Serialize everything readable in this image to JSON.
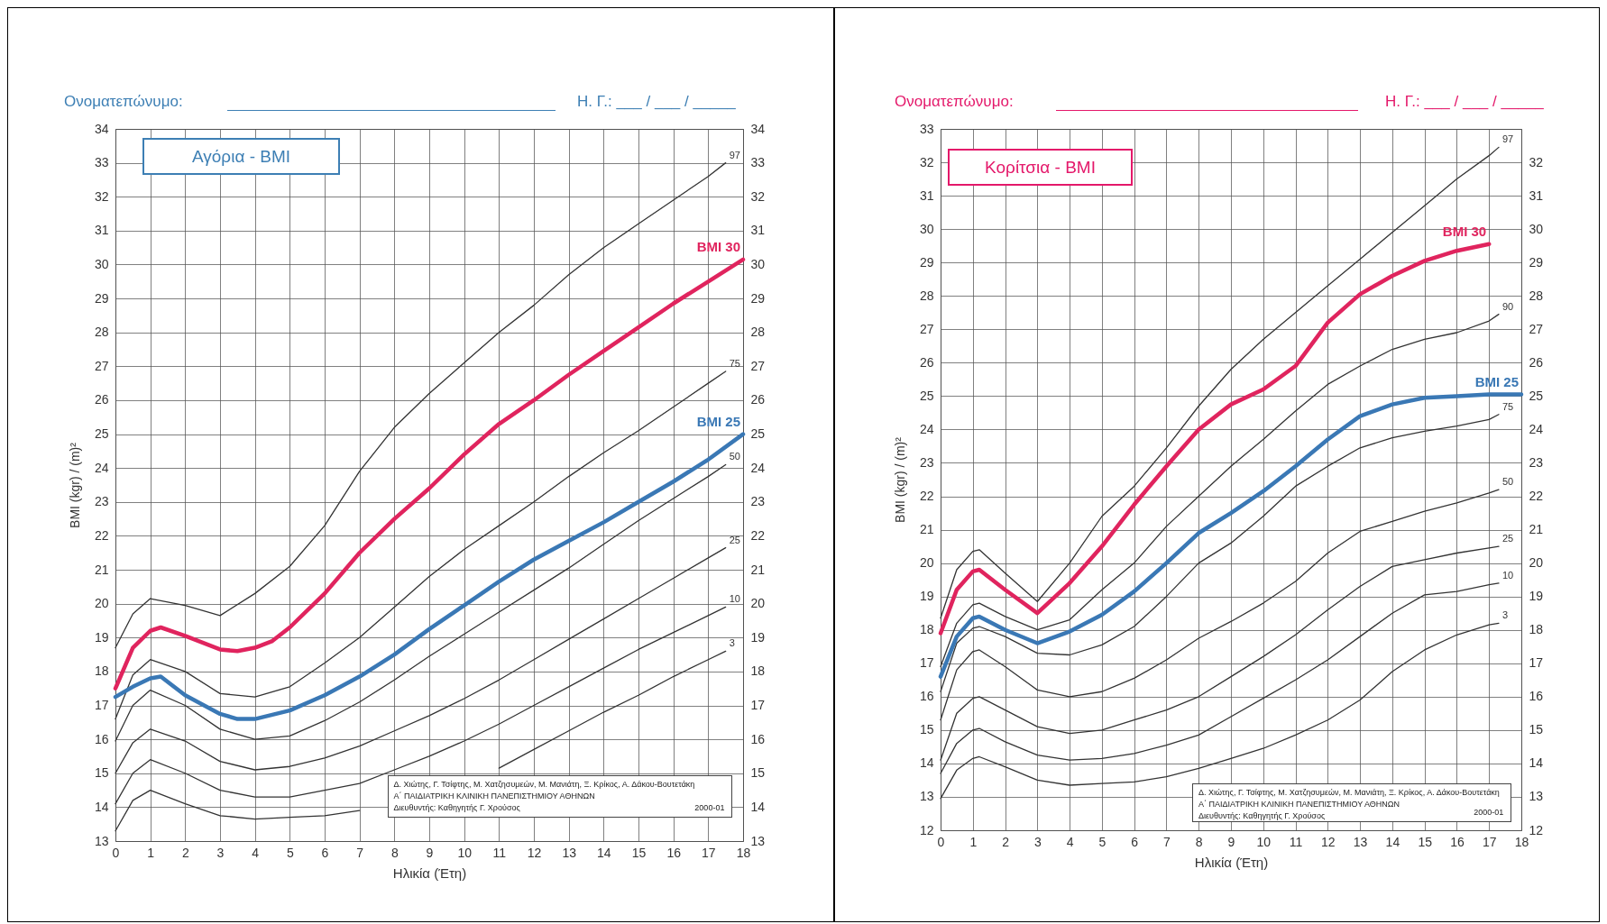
{
  "chart_data": [
    {
      "type": "line",
      "title": "Αγόρια - BMI",
      "xlabel": "Ηλικία (Έτη)",
      "ylabel": "BMI (kgr) / (m)²",
      "annotations": [
        "Ονοματεπώνυμο:",
        "Η. Γ.: ___ / ___ / _____",
        "Δ. Χιώτης, Γ. Τσίφτης, Μ. Χατζησυμεών, Μ. Μανιάτη, Ξ. Κρίκος, Α. Δάκου-Βουτετάκη",
        "Α΄ ΠΑΙΔΙΑΤΡΙΚΗ ΚΛΙΝΙΚΗ ΠΑΝΕΠΙΣΤΗΜΙΟΥ ΑΘΗΝΩΝ",
        "Διευθυντής: Καθηγητής Γ. Χρούσος",
        "2000-01"
      ],
      "xlim": [
        0,
        18
      ],
      "xticks": [
        0,
        1,
        2,
        3,
        4,
        5,
        6,
        7,
        8,
        9,
        10,
        11,
        12,
        13,
        14,
        15,
        16,
        17,
        18
      ],
      "ylim": [
        13,
        34
      ],
      "yticks": [
        13,
        14,
        15,
        16,
        17,
        18,
        19,
        20,
        21,
        22,
        23,
        24,
        25,
        26,
        27,
        28,
        29,
        30,
        31,
        32,
        33,
        34
      ],
      "y2lim": [
        13,
        34
      ],
      "y2ticks": [
        13,
        14,
        15,
        16,
        17,
        18,
        19,
        20,
        21,
        22,
        23,
        24,
        25,
        26,
        27,
        28,
        29,
        30,
        31,
        32,
        33,
        34
      ],
      "grid": true,
      "series": [
        {
          "name": "97",
          "color": "#333333",
          "x": [
            0,
            0.5,
            1,
            2,
            3,
            4,
            5,
            6,
            7,
            8,
            9,
            10,
            11,
            12,
            13,
            14,
            15,
            16,
            17,
            17.5
          ],
          "values": [
            18.7,
            19.7,
            20.15,
            19.95,
            19.65,
            20.3,
            21.1,
            22.3,
            23.9,
            25.2,
            26.2,
            27.1,
            28.0,
            28.8,
            29.7,
            30.5,
            31.2,
            31.9,
            32.6,
            33.0
          ]
        },
        {
          "name": "75",
          "color": "#333333",
          "x": [
            0,
            0.5,
            1,
            2,
            3,
            4,
            5,
            6,
            7,
            8,
            9,
            10,
            11,
            12,
            13,
            14,
            15,
            16,
            17,
            17.5
          ],
          "values": [
            16.6,
            17.9,
            18.35,
            18.0,
            17.35,
            17.25,
            17.55,
            18.25,
            19.0,
            19.9,
            20.8,
            21.6,
            22.3,
            23.0,
            23.75,
            24.45,
            25.1,
            25.8,
            26.5,
            26.85
          ]
        },
        {
          "name": "50",
          "color": "#333333",
          "x": [
            0,
            0.5,
            1,
            2,
            3,
            4,
            5,
            6,
            7,
            8,
            9,
            10,
            11,
            12,
            13,
            14,
            15,
            16,
            17,
            17.5
          ],
          "values": [
            15.95,
            17.0,
            17.45,
            17.0,
            16.3,
            16.0,
            16.1,
            16.55,
            17.1,
            17.75,
            18.45,
            19.1,
            19.75,
            20.4,
            21.05,
            21.75,
            22.45,
            23.1,
            23.75,
            24.1
          ]
        },
        {
          "name": "25",
          "color": "#333333",
          "x": [
            0,
            0.5,
            1,
            2,
            3,
            4,
            5,
            6,
            7,
            8,
            9,
            10,
            11,
            12,
            13,
            14,
            15,
            16,
            17,
            17.5
          ],
          "values": [
            15.0,
            15.9,
            16.3,
            15.95,
            15.35,
            15.1,
            15.2,
            15.45,
            15.8,
            16.25,
            16.7,
            17.2,
            17.75,
            18.35,
            18.95,
            19.55,
            20.15,
            20.75,
            21.35,
            21.65
          ]
        },
        {
          "name": "10",
          "color": "#333333",
          "x": [
            0,
            0.5,
            1,
            2,
            3,
            4,
            5,
            6,
            7,
            8,
            9,
            10,
            11,
            12,
            13,
            14,
            15,
            16,
            17,
            17.5
          ],
          "values": [
            14.1,
            15.0,
            15.4,
            15.0,
            14.5,
            14.3,
            14.3,
            14.5,
            14.7,
            15.1,
            15.5,
            15.95,
            16.45,
            17.0,
            17.55,
            18.1,
            18.65,
            19.15,
            19.65,
            19.9
          ]
        },
        {
          "name": "3",
          "color": "#333333",
          "x": [
            0,
            0.5,
            1,
            2,
            3,
            4,
            5,
            6,
            7,
            8,
            9,
            10,
            11,
            12,
            13,
            14,
            15,
            16,
            17,
            17.5
          ],
          "values": [
            13.3,
            14.2,
            14.5,
            14.1,
            13.75,
            13.65,
            13.7,
            13.75,
            13.9,
            null,
            null,
            null,
            15.15,
            15.7,
            16.25,
            16.8,
            17.3,
            17.85,
            18.35,
            18.6
          ]
        },
        {
          "name": "BMI 30",
          "color": "#e0245e",
          "x": [
            0,
            0.5,
            1,
            1.3,
            2,
            3,
            3.5,
            4,
            4.5,
            5,
            6,
            7,
            8,
            9,
            10,
            11,
            12,
            13,
            14,
            15,
            16,
            17,
            18
          ],
          "values": [
            17.5,
            18.7,
            19.2,
            19.3,
            19.05,
            18.65,
            18.6,
            18.7,
            18.9,
            19.3,
            20.3,
            21.5,
            22.5,
            23.4,
            24.4,
            25.3,
            26.0,
            26.75,
            27.45,
            28.15,
            28.85,
            29.5,
            30.15
          ]
        },
        {
          "name": "BMI 25",
          "color": "#3a78b5",
          "x": [
            0,
            0.5,
            1,
            1.3,
            2,
            3,
            3.5,
            4,
            5,
            6,
            7,
            8,
            9,
            10,
            11,
            12,
            13,
            14,
            15,
            16,
            17,
            18
          ],
          "values": [
            17.25,
            17.55,
            17.8,
            17.85,
            17.3,
            16.75,
            16.6,
            16.6,
            16.85,
            17.3,
            17.85,
            18.5,
            19.25,
            19.95,
            20.65,
            21.3,
            21.85,
            22.4,
            23.0,
            23.6,
            24.25,
            25.0
          ]
        }
      ]
    },
    {
      "type": "line",
      "title": "Κορίτσια - BMI",
      "xlabel": "Ηλικία (Έτη)",
      "ylabel": "BMI (kgr) / (m)²",
      "annotations": [
        "Ονοματεπώνυμο:",
        "Η. Γ.: ___ / ___ / _____",
        "Δ. Χιώτης, Γ. Τσίφτης, Μ. Χατζησυμεών, Μ. Μανιάτη, Ξ. Κρίκος, Α. Δάκου-Βουτετάκη",
        "Α΄ ΠΑΙΔΙΑΤΡΙΚΗ ΚΛΙΝΙΚΗ ΠΑΝΕΠΙΣΤΗΜΙΟΥ ΑΘΗΝΩΝ",
        "Διευθυντής: Καθηγητής Γ. Χρούσος",
        "2000-01"
      ],
      "xlim": [
        0,
        18
      ],
      "xticks": [
        0,
        1,
        2,
        3,
        4,
        5,
        6,
        7,
        8,
        9,
        10,
        11,
        12,
        13,
        14,
        15,
        16,
        17,
        18
      ],
      "ylim": [
        12,
        33
      ],
      "yticks": [
        12,
        13,
        14,
        15,
        16,
        17,
        18,
        19,
        20,
        21,
        22,
        23,
        24,
        25,
        26,
        27,
        28,
        29,
        30,
        31,
        32,
        33
      ],
      "y2lim": [
        12,
        33
      ],
      "y2ticks": [
        12,
        13,
        14,
        15,
        16,
        17,
        18,
        19,
        20,
        21,
        22,
        23,
        24,
        25,
        26,
        27,
        28,
        29,
        30,
        31,
        32
      ],
      "grid": true,
      "series": [
        {
          "name": "97",
          "color": "#333333",
          "x": [
            0,
            0.5,
            1,
            1.2,
            2,
            3,
            4,
            5,
            6,
            7,
            8,
            9,
            10,
            11,
            12,
            13,
            14,
            15,
            16,
            17,
            17.3
          ],
          "values": [
            18.35,
            19.8,
            20.35,
            20.4,
            19.7,
            18.85,
            20.0,
            21.4,
            22.3,
            23.45,
            24.7,
            25.8,
            26.7,
            27.5,
            28.3,
            29.1,
            29.9,
            30.7,
            31.5,
            32.2,
            32.45
          ]
        },
        {
          "name": "90",
          "color": "#333333",
          "x": [
            0,
            0.5,
            1,
            1.2,
            2,
            3,
            4,
            5,
            6,
            7,
            8,
            9,
            10,
            11,
            12,
            13,
            14,
            15,
            16,
            17,
            17.3
          ],
          "values": [
            16.9,
            18.2,
            18.75,
            18.8,
            18.4,
            18.0,
            18.3,
            19.2,
            20.0,
            21.1,
            22.0,
            22.9,
            23.7,
            24.55,
            25.35,
            25.9,
            26.4,
            26.7,
            26.9,
            27.25,
            27.45
          ]
        },
        {
          "name": "75",
          "color": "#333333",
          "x": [
            0,
            0.5,
            1,
            1.2,
            2,
            3,
            4,
            5,
            6,
            7,
            8,
            9,
            10,
            11,
            12,
            13,
            14,
            15,
            16,
            17,
            17.3
          ],
          "values": [
            16.15,
            17.6,
            18.05,
            18.1,
            17.8,
            17.3,
            17.25,
            17.55,
            18.1,
            19.0,
            20.0,
            20.6,
            21.4,
            22.3,
            22.9,
            23.45,
            23.75,
            23.95,
            24.1,
            24.3,
            24.45
          ]
        },
        {
          "name": "50",
          "color": "#333333",
          "x": [
            0,
            0.5,
            1,
            1.2,
            2,
            3,
            4,
            5,
            6,
            7,
            8,
            9,
            10,
            11,
            12,
            13,
            14,
            15,
            16,
            17,
            17.3
          ],
          "values": [
            15.3,
            16.8,
            17.35,
            17.4,
            16.9,
            16.2,
            16.0,
            16.15,
            16.55,
            17.1,
            17.75,
            18.25,
            18.8,
            19.45,
            20.3,
            20.95,
            21.25,
            21.55,
            21.8,
            22.1,
            22.2
          ]
        },
        {
          "name": "25",
          "color": "#333333",
          "x": [
            0,
            0.5,
            1,
            1.2,
            2,
            3,
            4,
            5,
            6,
            7,
            8,
            9,
            10,
            11,
            12,
            13,
            14,
            15,
            16,
            17,
            17.3
          ],
          "values": [
            14.1,
            15.5,
            15.95,
            16.0,
            15.6,
            15.1,
            14.9,
            15.0,
            15.3,
            15.6,
            16.0,
            16.6,
            17.2,
            17.85,
            18.6,
            19.3,
            19.9,
            20.1,
            20.3,
            20.45,
            20.5
          ]
        },
        {
          "name": "10",
          "color": "#333333",
          "x": [
            0,
            0.5,
            1,
            1.2,
            2,
            3,
            4,
            5,
            6,
            7,
            8,
            9,
            10,
            11,
            12,
            13,
            14,
            15,
            16,
            17,
            17.3
          ],
          "values": [
            13.7,
            14.6,
            15.0,
            15.05,
            14.65,
            14.25,
            14.1,
            14.15,
            14.3,
            14.55,
            14.85,
            15.4,
            15.95,
            16.5,
            17.1,
            17.8,
            18.5,
            19.05,
            19.15,
            19.35,
            19.4
          ]
        },
        {
          "name": "3",
          "color": "#333333",
          "x": [
            0,
            0.5,
            1,
            1.2,
            2,
            3,
            4,
            5,
            6,
            7,
            8,
            9,
            10,
            11,
            12,
            13,
            14,
            15,
            16,
            17,
            17.3
          ],
          "values": [
            12.95,
            13.8,
            14.15,
            14.2,
            13.9,
            13.5,
            13.35,
            13.4,
            13.45,
            13.6,
            13.85,
            14.15,
            14.45,
            14.85,
            15.3,
            15.9,
            16.75,
            17.4,
            17.85,
            18.15,
            18.2
          ]
        },
        {
          "name": "BMI 30",
          "color": "#e0245e",
          "x": [
            0,
            0.5,
            1,
            1.2,
            2,
            3,
            4,
            5,
            6,
            7,
            8,
            9,
            10,
            11,
            12,
            13,
            14,
            15,
            16,
            17
          ],
          "values": [
            17.9,
            19.2,
            19.75,
            19.8,
            19.2,
            18.5,
            19.4,
            20.5,
            21.75,
            22.9,
            24.0,
            24.75,
            25.2,
            25.9,
            27.2,
            28.05,
            28.6,
            29.05,
            29.35,
            29.55
          ]
        },
        {
          "name": "BMI 25",
          "color": "#3a78b5",
          "x": [
            0,
            0.5,
            1,
            1.2,
            2,
            3,
            4,
            5,
            6,
            7,
            8,
            9,
            10,
            11,
            12,
            13,
            14,
            15,
            16,
            17,
            18
          ],
          "values": [
            16.6,
            17.8,
            18.35,
            18.4,
            18.0,
            17.6,
            17.95,
            18.45,
            19.15,
            20.0,
            20.9,
            21.5,
            22.15,
            22.9,
            23.7,
            24.4,
            24.75,
            24.95,
            25.0,
            25.05,
            25.05
          ]
        }
      ]
    }
  ]
}
